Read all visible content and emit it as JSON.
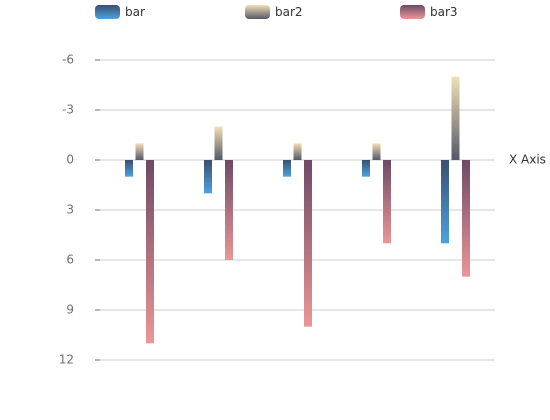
{
  "chart_data": {
    "type": "bar",
    "categories": [
      null,
      null,
      null,
      null,
      null
    ],
    "x_axis_name": "X Axis",
    "y_inverse": true,
    "ylim": [
      -6,
      12
    ],
    "yticks": [
      -6,
      -3,
      0,
      3,
      6,
      9,
      12
    ],
    "grid": true,
    "legend_position": "top",
    "series": [
      {
        "name": "bar",
        "color": [
          "#3b4f6e",
          "#4aa3e0"
        ],
        "values": [
          1,
          2,
          1,
          1,
          5
        ]
      },
      {
        "name": "bar2",
        "color": [
          "#f2dfb6",
          "#545868"
        ],
        "values": [
          -1,
          -2,
          -1,
          -1,
          -5
        ]
      },
      {
        "name": "bar3",
        "color": [
          "#6d4a66",
          "#ec9696"
        ],
        "values": [
          11,
          6,
          10,
          5,
          7
        ]
      }
    ]
  }
}
